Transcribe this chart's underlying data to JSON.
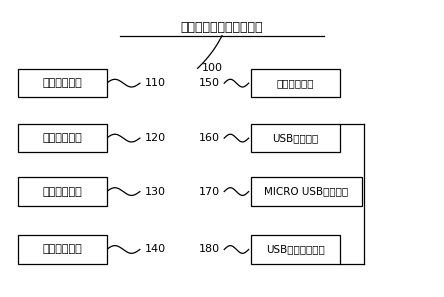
{
  "title": "多功能外设接口检测装置",
  "title_label": "100",
  "background_color": "#ffffff",
  "left_boxes": [
    {
      "label": "小板连接模块",
      "number": "110"
    },
    {
      "label": "启动开关模块",
      "number": "120"
    },
    {
      "label": "放电接口模块",
      "number": "130"
    },
    {
      "label": "网络接口模块",
      "number": "140"
    }
  ],
  "right_boxes": [
    {
      "label": "音频接口模块",
      "number": "150"
    },
    {
      "label": "USB接口模块",
      "number": "160"
    },
    {
      "label": "MICRO USB接口模块",
      "number": "170"
    },
    {
      "label": "USB接口转换模块",
      "number": "180"
    }
  ],
  "fig_width": 4.44,
  "fig_height": 2.97,
  "dpi": 100
}
